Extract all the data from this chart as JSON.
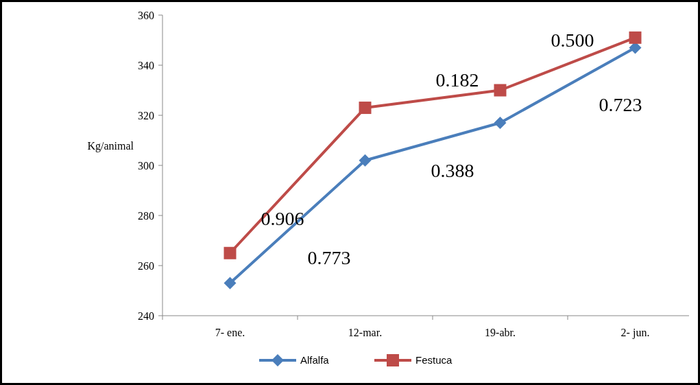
{
  "chart_data": {
    "type": "line",
    "ylabel": "Kg/animal",
    "categories": [
      "7- ene.",
      "12-mar.",
      "19-abr.",
      "2- jun."
    ],
    "series": [
      {
        "name": "Alfalfa",
        "color": "#4a7ebb",
        "marker": "diamond",
        "values": [
          253,
          302,
          317,
          347
        ]
      },
      {
        "name": "Festuca",
        "color": "#be4b48",
        "marker": "square",
        "values": [
          265,
          323,
          330,
          351
        ]
      }
    ],
    "ylim": [
      240,
      360
    ],
    "yticks": [
      240,
      260,
      280,
      300,
      320,
      340,
      360
    ],
    "grid": false,
    "legend": "bottom",
    "annotations": [
      "0.906",
      "0.773",
      "0.388",
      "0.182",
      "0.500",
      "0.723"
    ]
  }
}
